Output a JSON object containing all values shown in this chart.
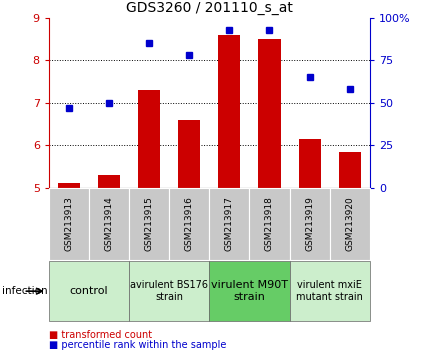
{
  "title": "GDS3260 / 201110_s_at",
  "samples": [
    "GSM213913",
    "GSM213914",
    "GSM213915",
    "GSM213916",
    "GSM213917",
    "GSM213918",
    "GSM213919",
    "GSM213920"
  ],
  "bar_values": [
    5.1,
    5.3,
    7.3,
    6.6,
    8.6,
    8.5,
    6.15,
    5.85
  ],
  "dot_values": [
    47,
    50,
    85,
    78,
    93,
    93,
    65,
    58
  ],
  "ylim_left": [
    5,
    9
  ],
  "ylim_right": [
    0,
    100
  ],
  "yticks_left": [
    5,
    6,
    7,
    8,
    9
  ],
  "yticks_right": [
    0,
    25,
    50,
    75,
    100
  ],
  "yticklabels_right": [
    "0",
    "25",
    "50",
    "75",
    "100%"
  ],
  "bar_color": "#cc0000",
  "dot_color": "#0000cc",
  "bar_bottom": 5,
  "groups": [
    {
      "label": "control",
      "start": 0,
      "end": 2,
      "color": "#cceecc",
      "fontsize": 8
    },
    {
      "label": "avirulent BS176\nstrain",
      "start": 2,
      "end": 4,
      "color": "#cceecc",
      "fontsize": 7
    },
    {
      "label": "virulent M90T\nstrain",
      "start": 4,
      "end": 6,
      "color": "#66cc66",
      "fontsize": 8
    },
    {
      "label": "virulent mxiE\nmutant strain",
      "start": 6,
      "end": 8,
      "color": "#cceecc",
      "fontsize": 7
    }
  ],
  "infection_label": "infection",
  "legend_bar_label": "transformed count",
  "legend_dot_label": "percentile rank within the sample",
  "bg_color": "#ffffff",
  "tick_label_color_left": "#cc0000",
  "tick_label_color_right": "#0000cc",
  "sample_row_color": "#c8c8c8",
  "sample_label_fontsize": 6.5,
  "title_fontsize": 10
}
